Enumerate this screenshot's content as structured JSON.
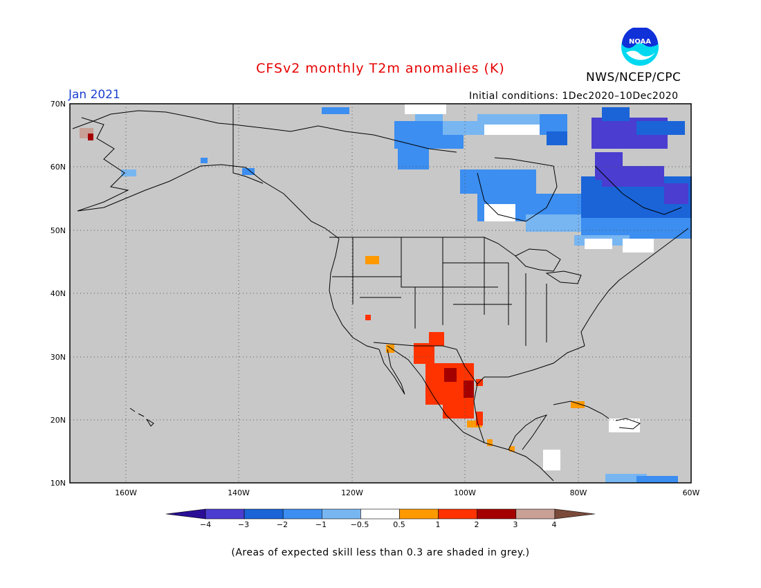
{
  "title": "CFSv2 monthly T2m anomalies (K)",
  "organization": "NWS/NCEP/CPC",
  "logo_text": "NOAA",
  "valid_month": "Jan 2021",
  "initial_conditions": "Initial conditions: 1Dec2020–10Dec2020",
  "footnote": "(Areas of expected skill less than 0.3 are shaded in grey.)",
  "lat_labels": [
    "70N",
    "60N",
    "50N",
    "40N",
    "30N",
    "20N",
    "10N"
  ],
  "lon_labels": [
    "160W",
    "140W",
    "120W",
    "100W",
    "80W",
    "60W"
  ],
  "colorbar": {
    "labels": [
      "−4",
      "−3",
      "−2",
      "−1",
      "−0.5",
      "0.5",
      "1",
      "2",
      "3",
      "4"
    ],
    "colors": [
      "#2a0f96",
      "#4a3dd0",
      "#1a64d8",
      "#3c8ef0",
      "#78b6f2",
      "#ffffff",
      "#ff9900",
      "#ff3300",
      "#a50000",
      "#c8a096",
      "#7a4a3a"
    ]
  },
  "colors": {
    "grey_mask": "#c8c8c8",
    "title": "#e60000",
    "month": "#1a3fd0",
    "logo_blue": "#1030d8",
    "logo_cyan": "#00d8f0"
  }
}
